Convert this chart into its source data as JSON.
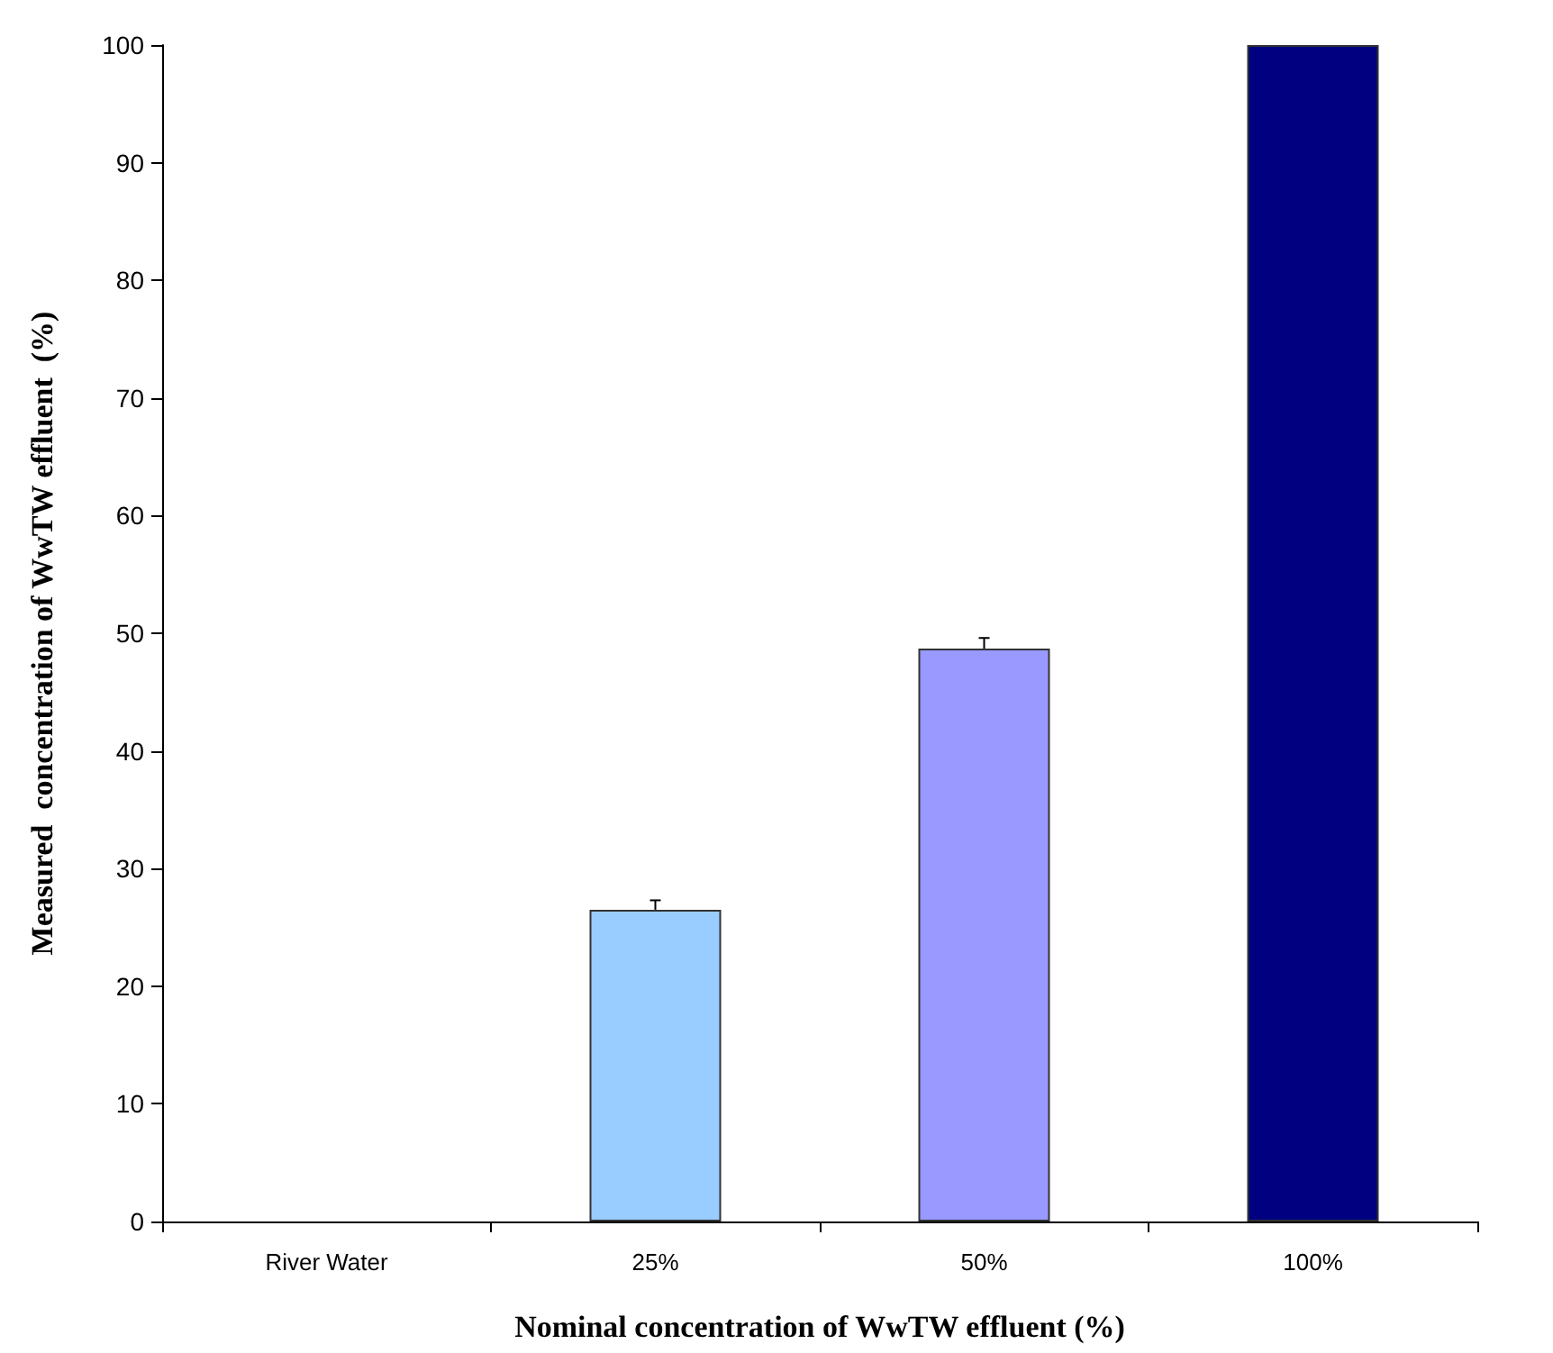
{
  "chart_data": {
    "type": "bar",
    "xlabel": "Nominal concentration of WwTW effluent (%)",
    "ylabel": "Measured  concentration of WwTW effluent  (%)",
    "categories": [
      "River Water",
      "25%",
      "50%",
      "100%"
    ],
    "values": [
      0,
      26.5,
      48.7,
      100
    ],
    "colors": [
      "#99ccff",
      "#99ccff",
      "#9999ff",
      "#000080"
    ],
    "errors": [
      null,
      [
        26.5,
        27.3
      ],
      [
        48.7,
        49.6
      ],
      null
    ],
    "ylim": [
      0,
      100
    ],
    "yticks": [
      0,
      10,
      20,
      30,
      40,
      50,
      60,
      70,
      80,
      90,
      100
    ],
    "grid": false
  }
}
